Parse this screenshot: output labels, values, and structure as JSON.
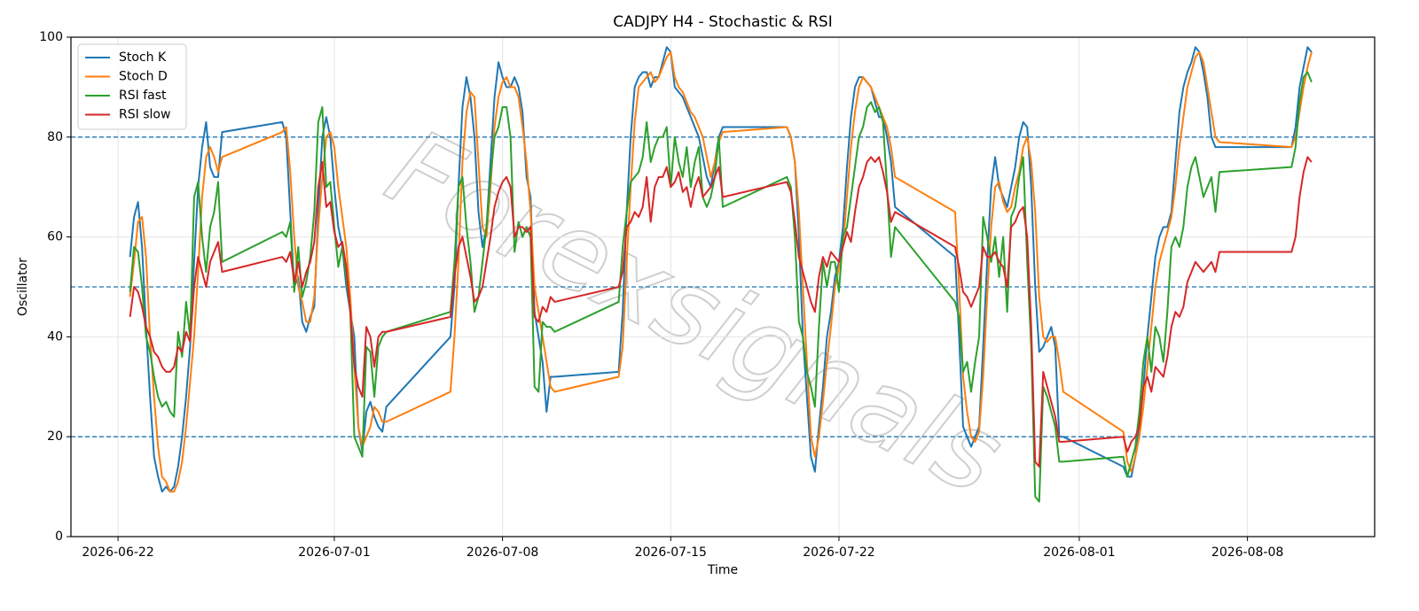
{
  "chart_data": {
    "type": "line",
    "title": "CADJPY H4 - Stochastic & RSI",
    "x_label": "Time",
    "y_label": "Oscillator",
    "watermark": "Forexsignals",
    "xlim": [
      "2026-06-20 01:00",
      "2026-08-13 07:00"
    ],
    "xticks": [
      "2026-06-22",
      "2026-07-01",
      "2026-07-08",
      "2026-07-15",
      "2026-07-22",
      "2026-08-01",
      "2026-08-08"
    ],
    "ylim": [
      0,
      100
    ],
    "yticks": [
      0,
      20,
      40,
      60,
      80,
      100
    ],
    "hlines": [
      20,
      50,
      80
    ],
    "hline_color": "#1f77b4",
    "grid": true,
    "legend": "upper left",
    "x": [
      "2026-06-22 12:00",
      "2026-06-22 16:00",
      "2026-06-22 20:00",
      "2026-06-23 00:00",
      "2026-06-23 04:00",
      "2026-06-23 08:00",
      "2026-06-23 12:00",
      "2026-06-23 16:00",
      "2026-06-23 20:00",
      "2026-06-24 00:00",
      "2026-06-24 04:00",
      "2026-06-24 08:00",
      "2026-06-24 12:00",
      "2026-06-24 16:00",
      "2026-06-24 20:00",
      "2026-06-25 00:00",
      "2026-06-25 04:00",
      "2026-06-25 08:00",
      "2026-06-25 12:00",
      "2026-06-25 16:00",
      "2026-06-25 20:00",
      "2026-06-26 00:00",
      "2026-06-26 04:00",
      "2026-06-26 08:00",
      "2026-06-28 20:00",
      "2026-06-29 00:00",
      "2026-06-29 04:00",
      "2026-06-29 08:00",
      "2026-06-29 12:00",
      "2026-06-29 16:00",
      "2026-06-29 20:00",
      "2026-06-30 00:00",
      "2026-06-30 04:00",
      "2026-06-30 08:00",
      "2026-06-30 12:00",
      "2026-06-30 16:00",
      "2026-06-30 20:00",
      "2026-07-01 00:00",
      "2026-07-01 04:00",
      "2026-07-01 08:00",
      "2026-07-01 12:00",
      "2026-07-01 16:00",
      "2026-07-01 20:00",
      "2026-07-02 00:00",
      "2026-07-02 04:00",
      "2026-07-02 08:00",
      "2026-07-02 12:00",
      "2026-07-02 16:00",
      "2026-07-02 20:00",
      "2026-07-03 00:00",
      "2026-07-03 04:00",
      "2026-07-05 20:00",
      "2026-07-06 00:00",
      "2026-07-06 04:00",
      "2026-07-06 08:00",
      "2026-07-06 12:00",
      "2026-07-06 16:00",
      "2026-07-06 20:00",
      "2026-07-07 00:00",
      "2026-07-07 04:00",
      "2026-07-07 08:00",
      "2026-07-07 12:00",
      "2026-07-07 16:00",
      "2026-07-07 20:00",
      "2026-07-08 00:00",
      "2026-07-08 04:00",
      "2026-07-08 08:00",
      "2026-07-08 12:00",
      "2026-07-08 16:00",
      "2026-07-08 20:00",
      "2026-07-09 00:00",
      "2026-07-09 04:00",
      "2026-07-09 08:00",
      "2026-07-09 12:00",
      "2026-07-09 16:00",
      "2026-07-09 20:00",
      "2026-07-10 00:00",
      "2026-07-10 04:00",
      "2026-07-12 20:00",
      "2026-07-13 00:00",
      "2026-07-13 04:00",
      "2026-07-13 08:00",
      "2026-07-13 12:00",
      "2026-07-13 16:00",
      "2026-07-13 20:00",
      "2026-07-14 00:00",
      "2026-07-14 04:00",
      "2026-07-14 08:00",
      "2026-07-14 12:00",
      "2026-07-14 16:00",
      "2026-07-14 20:00",
      "2026-07-15 00:00",
      "2026-07-15 04:00",
      "2026-07-15 08:00",
      "2026-07-15 12:00",
      "2026-07-15 16:00",
      "2026-07-15 20:00",
      "2026-07-16 00:00",
      "2026-07-16 04:00",
      "2026-07-16 08:00",
      "2026-07-16 12:00",
      "2026-07-16 16:00",
      "2026-07-16 20:00",
      "2026-07-17 00:00",
      "2026-07-17 04:00",
      "2026-07-19 20:00",
      "2026-07-20 00:00",
      "2026-07-20 04:00",
      "2026-07-20 08:00",
      "2026-07-20 12:00",
      "2026-07-20 16:00",
      "2026-07-20 20:00",
      "2026-07-21 00:00",
      "2026-07-21 04:00",
      "2026-07-21 08:00",
      "2026-07-21 12:00",
      "2026-07-21 16:00",
      "2026-07-21 20:00",
      "2026-07-22 00:00",
      "2026-07-22 04:00",
      "2026-07-22 08:00",
      "2026-07-22 12:00",
      "2026-07-22 16:00",
      "2026-07-22 20:00",
      "2026-07-23 00:00",
      "2026-07-23 04:00",
      "2026-07-23 08:00",
      "2026-07-23 12:00",
      "2026-07-23 16:00",
      "2026-07-23 20:00",
      "2026-07-24 00:00",
      "2026-07-24 04:00",
      "2026-07-24 08:00",
      "2026-07-26 20:00",
      "2026-07-27 00:00",
      "2026-07-27 04:00",
      "2026-07-27 08:00",
      "2026-07-27 12:00",
      "2026-07-27 16:00",
      "2026-07-27 20:00",
      "2026-07-28 00:00",
      "2026-07-28 04:00",
      "2026-07-28 08:00",
      "2026-07-28 12:00",
      "2026-07-28 16:00",
      "2026-07-28 20:00",
      "2026-07-29 00:00",
      "2026-07-29 04:00",
      "2026-07-29 08:00",
      "2026-07-29 12:00",
      "2026-07-29 16:00",
      "2026-07-29 20:00",
      "2026-07-30 00:00",
      "2026-07-30 04:00",
      "2026-07-30 08:00",
      "2026-07-30 12:00",
      "2026-07-30 16:00",
      "2026-07-30 20:00",
      "2026-07-31 00:00",
      "2026-07-31 04:00",
      "2026-07-31 08:00",
      "2026-08-02 20:00",
      "2026-08-03 00:00",
      "2026-08-03 04:00",
      "2026-08-03 08:00",
      "2026-08-03 12:00",
      "2026-08-03 16:00",
      "2026-08-03 20:00",
      "2026-08-04 00:00",
      "2026-08-04 04:00",
      "2026-08-04 08:00",
      "2026-08-04 12:00",
      "2026-08-04 16:00",
      "2026-08-04 20:00",
      "2026-08-05 00:00",
      "2026-08-05 04:00",
      "2026-08-05 08:00",
      "2026-08-05 12:00",
      "2026-08-05 16:00",
      "2026-08-05 20:00",
      "2026-08-06 00:00",
      "2026-08-06 04:00",
      "2026-08-06 08:00",
      "2026-08-06 12:00",
      "2026-08-06 16:00",
      "2026-08-06 20:00",
      "2026-08-09 20:00",
      "2026-08-10 00:00",
      "2026-08-10 04:00",
      "2026-08-10 08:00",
      "2026-08-10 12:00",
      "2026-08-10 16:00"
    ],
    "series": [
      {
        "name": "Stoch K",
        "color": "#1f77b4",
        "values": [
          56,
          64,
          67,
          58,
          42,
          28,
          16,
          12,
          9,
          10,
          9,
          10,
          14,
          20,
          28,
          38,
          55,
          70,
          78,
          83,
          74,
          72,
          72,
          81,
          83,
          80,
          65,
          50,
          52,
          43,
          41,
          44,
          46,
          65,
          80,
          84,
          80,
          70,
          62,
          58,
          50,
          45,
          40,
          22,
          17,
          25,
          27,
          24,
          22,
          21,
          26,
          40,
          50,
          70,
          86,
          92,
          88,
          80,
          65,
          58,
          62,
          75,
          88,
          95,
          92,
          90,
          90,
          92,
          90,
          85,
          72,
          68,
          45,
          40,
          35,
          25,
          32,
          32,
          33,
          45,
          65,
          80,
          90,
          92,
          93,
          93,
          90,
          92,
          92,
          95,
          98,
          97,
          90,
          89,
          88,
          86,
          84,
          82,
          80,
          76,
          72,
          70,
          75,
          80,
          82,
          82,
          80,
          75,
          60,
          40,
          28,
          16,
          13,
          22,
          30,
          40,
          45,
          52,
          55,
          62,
          74,
          84,
          90,
          92,
          92,
          91,
          90,
          87,
          84,
          84,
          80,
          75,
          66,
          56,
          40,
          22,
          20,
          18,
          20,
          22,
          38,
          55,
          70,
          76,
          70,
          68,
          66,
          70,
          74,
          80,
          83,
          82,
          70,
          50,
          37,
          38,
          40,
          42,
          38,
          20,
          20,
          14,
          12,
          12,
          16,
          22,
          30,
          40,
          48,
          56,
          60,
          62,
          62,
          65,
          75,
          85,
          90,
          93,
          95,
          98,
          97,
          93,
          88,
          80,
          78,
          78,
          78,
          82,
          90,
          94,
          98,
          97
        ]
      },
      {
        "name": "Stoch D",
        "color": "#ff7f0e",
        "values": [
          48,
          55,
          63,
          64,
          56,
          40,
          28,
          18,
          12,
          11,
          9,
          9,
          11,
          15,
          22,
          31,
          40,
          53,
          68,
          76,
          78,
          76,
          73,
          76,
          81,
          82,
          73,
          60,
          50,
          47,
          43,
          43,
          48,
          62,
          72,
          80,
          81,
          78,
          70,
          64,
          58,
          48,
          34,
          22,
          18,
          20,
          22,
          26,
          25,
          23,
          23,
          29,
          40,
          55,
          75,
          85,
          89,
          88,
          75,
          62,
          60,
          70,
          82,
          88,
          91,
          92,
          90,
          90,
          88,
          82,
          75,
          65,
          50,
          45,
          40,
          35,
          30,
          29,
          32,
          38,
          55,
          70,
          83,
          90,
          91,
          92,
          93,
          91,
          92,
          94,
          96,
          97,
          92,
          90,
          89,
          87,
          85,
          84,
          82,
          80,
          76,
          72,
          75,
          79,
          81,
          82,
          80,
          75,
          65,
          50,
          35,
          20,
          16,
          20,
          27,
          35,
          42,
          50,
          54,
          58,
          68,
          78,
          85,
          90,
          92,
          91,
          90,
          88,
          86,
          84,
          82,
          78,
          72,
          65,
          50,
          32,
          25,
          20,
          19,
          21,
          32,
          48,
          62,
          70,
          71,
          67,
          65,
          66,
          70,
          73,
          78,
          80,
          75,
          65,
          48,
          40,
          39,
          40,
          40,
          35,
          29,
          21,
          15,
          13,
          16,
          20,
          26,
          34,
          42,
          50,
          55,
          58,
          61,
          64,
          70,
          78,
          84,
          90,
          93,
          96,
          97,
          95,
          90,
          85,
          80,
          79,
          78,
          80,
          85,
          90,
          94,
          97
        ]
      },
      {
        "name": "RSI fast",
        "color": "#2ca02c",
        "values": [
          49,
          58,
          57,
          50,
          40,
          37,
          32,
          28,
          26,
          27,
          25,
          24,
          41,
          36,
          47,
          40,
          68,
          71,
          60,
          53,
          62,
          65,
          71,
          55,
          61,
          60,
          63,
          49,
          58,
          48,
          51,
          56,
          65,
          83,
          86,
          70,
          71,
          62,
          54,
          58,
          52,
          45,
          20,
          18,
          16,
          38,
          37,
          28,
          38,
          40,
          41,
          45,
          55,
          70,
          72,
          62,
          55,
          45,
          48,
          55,
          62,
          72,
          80,
          82,
          86,
          86,
          80,
          57,
          63,
          60,
          62,
          60,
          30,
          29,
          43,
          42,
          42,
          41,
          47,
          58,
          65,
          71,
          72,
          73,
          76,
          83,
          75,
          78,
          80,
          80,
          82,
          70,
          80,
          75,
          72,
          78,
          70,
          75,
          78,
          68,
          66,
          68,
          72,
          80,
          66,
          72,
          70,
          60,
          43,
          40,
          33,
          30,
          26,
          42,
          55,
          50,
          55,
          55,
          49,
          60,
          62,
          68,
          74,
          80,
          82,
          86,
          87,
          85,
          86,
          83,
          70,
          56,
          62,
          47,
          44,
          33,
          35,
          29,
          35,
          40,
          64,
          60,
          55,
          60,
          52,
          60,
          45,
          64,
          66,
          72,
          76,
          55,
          38,
          8,
          7,
          30,
          28,
          25,
          22,
          15,
          15,
          16,
          12,
          15,
          18,
          25,
          35,
          40,
          33,
          42,
          40,
          35,
          45,
          58,
          60,
          58,
          62,
          70,
          74,
          76,
          72,
          68,
          70,
          72,
          65,
          73,
          74,
          78,
          87,
          92,
          93,
          91
        ]
      },
      {
        "name": "RSI slow",
        "color": "#d62728",
        "values": [
          44,
          50,
          49,
          46,
          42,
          40,
          37,
          36,
          34,
          33,
          33,
          34,
          38,
          37,
          41,
          39,
          50,
          56,
          53,
          50,
          55,
          57,
          59,
          53,
          56,
          55,
          57,
          51,
          55,
          50,
          53,
          55,
          59,
          70,
          75,
          66,
          67,
          61,
          58,
          59,
          54,
          45,
          34,
          30,
          28,
          42,
          40,
          34,
          40,
          41,
          41,
          44,
          52,
          58,
          60,
          56,
          52,
          47,
          48,
          50,
          55,
          60,
          66,
          69,
          71,
          72,
          70,
          60,
          62,
          62,
          61,
          62,
          44,
          43,
          46,
          45,
          48,
          47,
          50,
          53,
          62,
          63,
          65,
          64,
          66,
          72,
          63,
          70,
          72,
          72,
          74,
          70,
          71,
          73,
          69,
          70,
          66,
          70,
          72,
          68,
          69,
          70,
          72,
          74,
          68,
          71,
          69,
          63,
          56,
          53,
          50,
          47,
          45,
          52,
          56,
          54,
          57,
          56,
          55,
          58,
          61,
          59,
          65,
          70,
          72,
          75,
          76,
          75,
          76,
          73,
          69,
          63,
          65,
          58,
          54,
          49,
          48,
          46,
          48,
          50,
          58,
          56,
          56,
          57,
          55,
          54,
          50,
          62,
          63,
          65,
          66,
          60,
          42,
          15,
          14,
          33,
          30,
          27,
          24,
          19,
          19,
          20,
          17,
          19,
          20,
          22,
          30,
          32,
          29,
          34,
          33,
          32,
          36,
          42,
          45,
          44,
          46,
          51,
          53,
          55,
          54,
          53,
          54,
          55,
          53,
          57,
          57,
          60,
          68,
          73,
          76,
          75
        ]
      }
    ]
  }
}
